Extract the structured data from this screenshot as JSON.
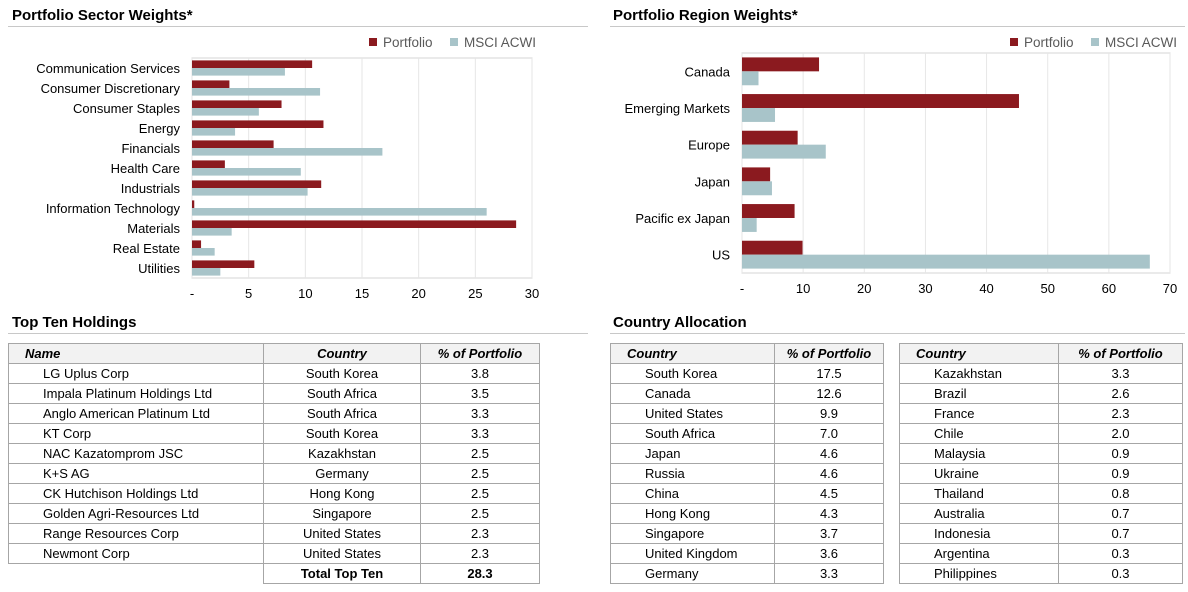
{
  "sector_title": "Portfolio Sector Weights*",
  "region_title": "Portfolio Region Weights*",
  "holdings_title": "Top Ten Holdings",
  "country_title": "Country Allocation",
  "colors": {
    "portfolio": "#8b1a1f",
    "benchmark": "#a8c4c9"
  },
  "chart_data": [
    {
      "type": "bar",
      "orientation": "horizontal",
      "title": "Portfolio Sector Weights*",
      "categories": [
        "Communication Services",
        "Consumer Discretionary",
        "Consumer Staples",
        "Energy",
        "Financials",
        "Health Care",
        "Industrials",
        "Information Technology",
        "Materials",
        "Real Estate",
        "Utilities"
      ],
      "series": [
        {
          "name": "Portfolio",
          "values": [
            10.6,
            3.3,
            7.9,
            11.6,
            7.2,
            2.9,
            11.4,
            0.2,
            28.6,
            0.8,
            5.5
          ]
        },
        {
          "name": "MSCI ACWI",
          "values": [
            8.2,
            11.3,
            5.9,
            3.8,
            16.8,
            9.6,
            10.2,
            26.0,
            3.5,
            2.0,
            2.5
          ]
        }
      ],
      "xlim": [
        0,
        30
      ],
      "xticks": [
        "-",
        "5",
        "10",
        "15",
        "20",
        "25",
        "30"
      ],
      "legend": "top-right"
    },
    {
      "type": "bar",
      "orientation": "horizontal",
      "title": "Portfolio Region Weights*",
      "categories": [
        "Canada",
        "Emerging Markets",
        "Europe",
        "Japan",
        "Pacific ex Japan",
        "US"
      ],
      "series": [
        {
          "name": "Portfolio",
          "values": [
            12.6,
            45.3,
            9.1,
            4.6,
            8.6,
            9.9
          ]
        },
        {
          "name": "MSCI ACWI",
          "values": [
            2.7,
            5.4,
            13.7,
            4.9,
            2.4,
            66.7
          ]
        }
      ],
      "xlim": [
        0,
        70
      ],
      "xticks": [
        "-",
        "10",
        "20",
        "30",
        "40",
        "50",
        "60",
        "70"
      ],
      "legend": "top-right"
    }
  ],
  "holdings": {
    "headers": [
      "Name",
      "Country",
      "% of Portfolio"
    ],
    "rows": [
      [
        "LG Uplus Corp",
        "South Korea",
        "3.8"
      ],
      [
        "Impala Platinum Holdings Ltd",
        "South Africa",
        "3.5"
      ],
      [
        "Anglo American Platinum Ltd",
        "South Africa",
        "3.3"
      ],
      [
        "KT Corp",
        "South Korea",
        "3.3"
      ],
      [
        "NAC Kazatomprom JSC",
        "Kazakhstan",
        "2.5"
      ],
      [
        "K+S AG",
        "Germany",
        "2.5"
      ],
      [
        "CK Hutchison Holdings Ltd",
        "Hong Kong",
        "2.5"
      ],
      [
        "Golden Agri-Resources Ltd",
        "Singapore",
        "2.5"
      ],
      [
        "Range Resources Corp",
        "United States",
        "2.3"
      ],
      [
        "Newmont Corp",
        "United States",
        "2.3"
      ]
    ],
    "total_label": "Total Top Ten",
    "total_value": "28.3"
  },
  "country_allocation": {
    "headers": [
      "Country",
      "% of Portfolio"
    ],
    "left": [
      [
        "South Korea",
        "17.5"
      ],
      [
        "Canada",
        "12.6"
      ],
      [
        "United States",
        "9.9"
      ],
      [
        "South Africa",
        "7.0"
      ],
      [
        "Japan",
        "4.6"
      ],
      [
        "Russia",
        "4.6"
      ],
      [
        "China",
        "4.5"
      ],
      [
        "Hong Kong",
        "4.3"
      ],
      [
        "Singapore",
        "3.7"
      ],
      [
        "United Kingdom",
        "3.6"
      ],
      [
        "Germany",
        "3.3"
      ]
    ],
    "right": [
      [
        "Kazakhstan",
        "3.3"
      ],
      [
        "Brazil",
        "2.6"
      ],
      [
        "France",
        "2.3"
      ],
      [
        "Chile",
        "2.0"
      ],
      [
        "Malaysia",
        "0.9"
      ],
      [
        "Ukraine",
        "0.9"
      ],
      [
        "Thailand",
        "0.8"
      ],
      [
        "Australia",
        "0.7"
      ],
      [
        "Indonesia",
        "0.7"
      ],
      [
        "Argentina",
        "0.3"
      ],
      [
        "Philippines",
        "0.3"
      ]
    ]
  }
}
